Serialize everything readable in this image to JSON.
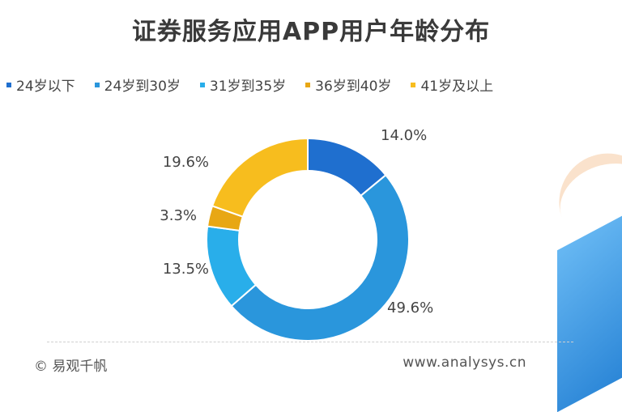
{
  "title": "证券服务应用APP用户年龄分布",
  "footer": {
    "copyright": "© 易观千帆",
    "url": "www.analysys.cn"
  },
  "chart_data": {
    "type": "pie",
    "title": "证券服务应用APP用户年龄分布",
    "legend_position": "top",
    "categories": [
      "24岁以下",
      "24岁到30岁",
      "31岁到35岁",
      "36岁到40岁",
      "41岁及以上"
    ],
    "values": [
      14.0,
      49.6,
      13.5,
      3.3,
      19.6
    ],
    "labels": [
      "14.0%",
      "49.6%",
      "13.5%",
      "3.3%",
      "19.6%"
    ],
    "colors": [
      "#1f6fcf",
      "#2a96dc",
      "#29aeea",
      "#e8a714",
      "#f7bd1e"
    ],
    "legend_colors": [
      "#1f6fcf",
      "#2a96dc",
      "#29aeea",
      "#e8a714",
      "#f7bd1e"
    ]
  }
}
